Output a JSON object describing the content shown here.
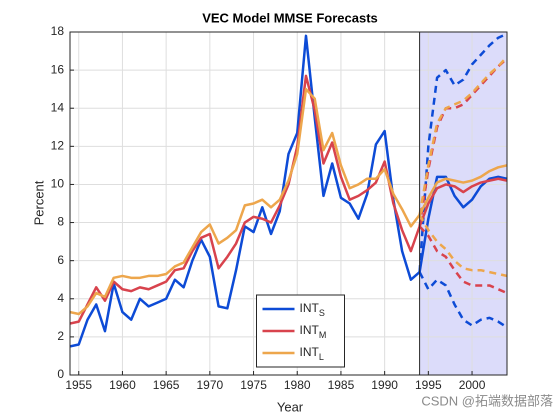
{
  "chart_data": {
    "type": "line",
    "title": "VEC Model MMSE Forecasts",
    "xlabel": "Year",
    "ylabel": "Percent",
    "watermark": "CSDN @拓端数据部落",
    "xlim": [
      1954,
      2004
    ],
    "ylim": [
      0,
      18
    ],
    "xticks": [
      1955,
      1960,
      1965,
      1970,
      1975,
      1980,
      1985,
      1990,
      1995,
      2000
    ],
    "yticks": [
      0,
      2,
      4,
      6,
      8,
      10,
      12,
      14,
      16,
      18
    ],
    "grid": true,
    "legend": "south",
    "shade_color": "#dcdcfa",
    "x": [
      1954,
      1955,
      1956,
      1957,
      1958,
      1959,
      1960,
      1961,
      1962,
      1963,
      1964,
      1965,
      1966,
      1967,
      1968,
      1969,
      1970,
      1971,
      1972,
      1973,
      1974,
      1975,
      1976,
      1977,
      1978,
      1979,
      1980,
      1981,
      1982,
      1983,
      1984,
      1985,
      1986,
      1987,
      1988,
      1989,
      1990,
      1991,
      1992,
      1993,
      1994
    ],
    "series": [
      {
        "name": "INT",
        "subscript": "S",
        "color": "#0d4bd6",
        "values": [
          1.5,
          1.6,
          2.9,
          3.7,
          2.3,
          4.8,
          3.3,
          2.9,
          4.0,
          3.6,
          3.8,
          4.0,
          5.0,
          4.6,
          6.0,
          7.1,
          6.2,
          3.6,
          3.5,
          5.5,
          7.8,
          7.5,
          8.8,
          7.4,
          8.6,
          11.6,
          12.7,
          17.8,
          13.5,
          9.4,
          11.1,
          9.3,
          9.0,
          8.2,
          9.5,
          12.1,
          12.8,
          9.2,
          6.5,
          5.0,
          5.4
        ]
      },
      {
        "name": "INT",
        "subscript": "M",
        "color": "#d8434d",
        "values": [
          2.7,
          2.8,
          3.7,
          4.6,
          3.9,
          4.9,
          4.5,
          4.4,
          4.6,
          4.5,
          4.7,
          4.9,
          5.5,
          5.6,
          6.5,
          7.2,
          7.4,
          5.6,
          6.2,
          6.9,
          8.0,
          8.3,
          8.2,
          8.0,
          8.9,
          10.0,
          12.0,
          15.7,
          13.9,
          11.1,
          12.2,
          10.4,
          9.2,
          9.4,
          9.7,
          10.1,
          11.2,
          9.0,
          7.6,
          6.5,
          7.8
        ]
      },
      {
        "name": "INT",
        "subscript": "L",
        "color": "#eda64c",
        "values": [
          3.3,
          3.2,
          3.6,
          4.3,
          4.1,
          5.1,
          5.2,
          5.1,
          5.1,
          5.2,
          5.2,
          5.3,
          5.7,
          5.9,
          6.7,
          7.5,
          7.9,
          6.9,
          7.2,
          7.6,
          8.9,
          9.0,
          9.2,
          8.8,
          9.2,
          10.2,
          11.6,
          15.0,
          14.5,
          11.8,
          12.7,
          11.0,
          9.8,
          10.0,
          10.3,
          10.3,
          10.8,
          9.5,
          8.7,
          7.8,
          8.4
        ]
      }
    ],
    "forecast": {
      "x": [
        1994,
        1995,
        1996,
        1997,
        1998,
        1999,
        2000,
        2001,
        2002,
        2003,
        2004
      ],
      "series": [
        {
          "color": "#0d4bd6",
          "mean": [
            5.4,
            8.2,
            10.4,
            10.4,
            9.4,
            8.8,
            9.2,
            9.9,
            10.3,
            10.4,
            10.3
          ],
          "upper": [
            5.4,
            12.0,
            15.6,
            16.0,
            15.2,
            15.5,
            16.3,
            16.8,
            17.3,
            17.7,
            17.9
          ],
          "lower": [
            5.4,
            4.5,
            5.0,
            4.7,
            3.7,
            2.9,
            2.6,
            2.9,
            3.0,
            2.8,
            2.5
          ]
        },
        {
          "color": "#d8434d",
          "mean": [
            7.8,
            9.0,
            9.8,
            10.0,
            9.9,
            9.6,
            9.9,
            10.1,
            10.2,
            10.3,
            10.2
          ],
          "upper": [
            7.8,
            10.8,
            13.0,
            14.0,
            14.0,
            14.2,
            14.7,
            15.2,
            15.7,
            16.2,
            16.6
          ],
          "lower": [
            7.8,
            7.3,
            6.5,
            6.2,
            5.5,
            4.9,
            4.7,
            4.7,
            4.7,
            4.5,
            4.3
          ]
        },
        {
          "color": "#eda64c",
          "mean": [
            8.4,
            9.3,
            10.1,
            10.3,
            10.2,
            10.1,
            10.2,
            10.4,
            10.7,
            10.9,
            11.0
          ],
          "upper": [
            8.4,
            11.0,
            13.2,
            14.0,
            14.2,
            14.4,
            14.8,
            15.3,
            15.8,
            16.2,
            16.7
          ],
          "lower": [
            8.4,
            7.6,
            7.0,
            6.6,
            6.0,
            5.6,
            5.5,
            5.5,
            5.4,
            5.3,
            5.2
          ]
        }
      ]
    }
  }
}
